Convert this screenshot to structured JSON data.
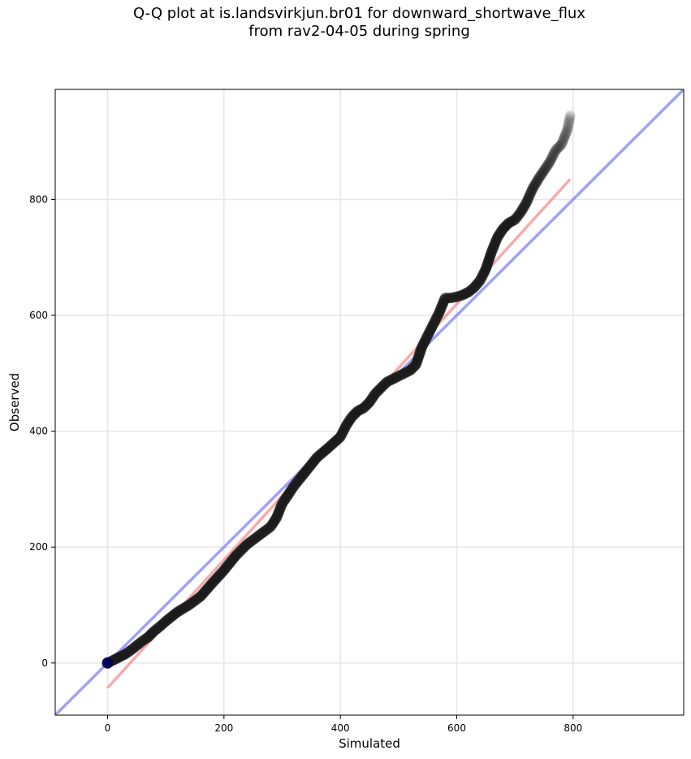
{
  "chart_data": {
    "type": "scatter",
    "title": "Q-Q plot at is.landsvirkjun.br01 for downward_shortwave_flux",
    "subtitle": "from rav2-04-05 during spring",
    "xlabel": "Simulated",
    "ylabel": "Observed",
    "xlim": [
      -90,
      990
    ],
    "ylim": [
      -90,
      990
    ],
    "xticks": [
      0,
      200,
      400,
      600,
      800
    ],
    "yticks": [
      0,
      200,
      400,
      600,
      800
    ],
    "grid": true,
    "legend": "none",
    "colors": {
      "points": "#1a1a1a",
      "identity_line": "#6f6ff5",
      "fit_line": "#f47c7c",
      "first_point": "#00005a"
    },
    "identity_line": {
      "x": [
        -90,
        990
      ],
      "y": [
        -90,
        990
      ]
    },
    "fit_line": {
      "x": [
        0,
        795
      ],
      "y": [
        -43,
        835
      ]
    },
    "quantiles": {
      "x": [
        0,
        10,
        20,
        30,
        40,
        50,
        60,
        70,
        80,
        90,
        100,
        120,
        140,
        160,
        180,
        200,
        220,
        240,
        260,
        280,
        290,
        300,
        310,
        320,
        340,
        360,
        380,
        400,
        410,
        420,
        430,
        440,
        450,
        460,
        480,
        500,
        520,
        530,
        540,
        550,
        560,
        570,
        580,
        590,
        600,
        610,
        620,
        630,
        640,
        650,
        660,
        670,
        680,
        690,
        700,
        710,
        720,
        730,
        740,
        750,
        760,
        770,
        780,
        790,
        795
      ],
      "y": [
        0,
        5,
        10,
        15,
        22,
        30,
        38,
        45,
        55,
        63,
        72,
        88,
        100,
        115,
        138,
        160,
        185,
        205,
        220,
        235,
        250,
        275,
        290,
        305,
        330,
        355,
        372,
        390,
        410,
        425,
        435,
        440,
        450,
        465,
        485,
        495,
        505,
        515,
        545,
        565,
        585,
        605,
        630,
        630,
        632,
        635,
        640,
        648,
        660,
        680,
        710,
        735,
        750,
        760,
        765,
        778,
        795,
        818,
        835,
        850,
        865,
        885,
        895,
        920,
        945
      ]
    }
  }
}
